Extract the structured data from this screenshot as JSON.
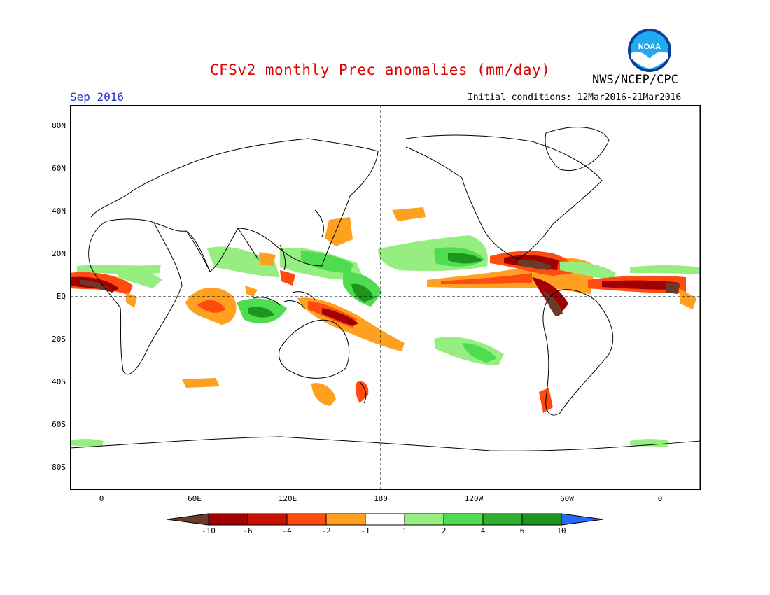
{
  "header": {
    "title": "CFSv2 monthly Prec anomalies (mm/day)",
    "agency": "NWS/NCEP/CPC",
    "logo_text": "NOAA",
    "month": "Sep 2016",
    "initial_conditions": "Initial conditions: 12Mar2016-21Mar2016"
  },
  "map": {
    "lat_labels": [
      "80N",
      "60N",
      "40N",
      "20N",
      "EQ",
      "20S",
      "40S",
      "60S",
      "80S"
    ],
    "lon_labels": [
      "0",
      "60E",
      "120E",
      "180",
      "120W",
      "60W",
      "0"
    ]
  },
  "colorbar": {
    "labels": [
      "-10",
      "-6",
      "-4",
      "-2",
      "-1",
      "1",
      "2",
      "4",
      "6",
      "10"
    ],
    "colors": [
      "#6b3a28",
      "#a00000",
      "#c81000",
      "#ff4a10",
      "#ffa020",
      "#ffffff",
      "#96ee80",
      "#50dc50",
      "#30b030",
      "#1e961e",
      "#2868ff"
    ]
  }
}
